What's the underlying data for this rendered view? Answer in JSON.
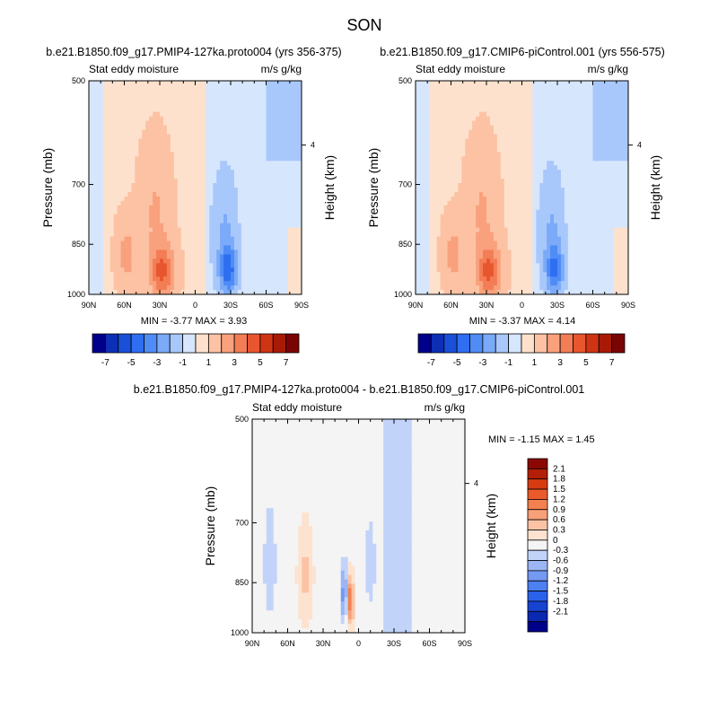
{
  "figure": {
    "title": "SON"
  },
  "colors": {
    "abs_palette": [
      "#00008b",
      "#0d2fb5",
      "#1a50d8",
      "#2e6ef0",
      "#4f8cf5",
      "#7aaaf8",
      "#a8c8fb",
      "#d6e6fd",
      "#fde1cd",
      "#fcc2a3",
      "#f9a17c",
      "#f37d55",
      "#e8562f",
      "#cf3414",
      "#a81a06",
      "#7a0403"
    ],
    "diff_palette": [
      "#00008b",
      "#0a28b0",
      "#1643d1",
      "#2b62ea",
      "#4d80f0",
      "#7499f3",
      "#9bb5f5",
      "#c2d3fa",
      "#f4f4f4",
      "#fde2d0",
      "#fbc3a4",
      "#f8a078",
      "#f3814f",
      "#ec5a2c",
      "#d73b12",
      "#b31e06",
      "#8a0703"
    ]
  },
  "chart_data": [
    {
      "type": "heatmap",
      "title": "b.e21.B1850.f09_g17.PMIP4-127ka.proto004 (yrs 356-375)",
      "left_label": "Stat eddy moisture",
      "right_label": "m/s g/kg",
      "ylabel": "Pressure (mb)",
      "ylabel_right": "Height (km)",
      "x_ticks": [
        "90N",
        "60N",
        "30N",
        "0",
        "30S",
        "60S",
        "90S"
      ],
      "x_values": [
        90,
        60,
        30,
        0,
        -30,
        -60,
        -90
      ],
      "y_ticks": [
        "500",
        "700",
        "850",
        "1000"
      ],
      "y_values": [
        500,
        700,
        850,
        1000
      ],
      "y_right_ticks": [
        "4"
      ],
      "ylim": [
        1000,
        500
      ],
      "xlim": [
        90,
        -90
      ],
      "stats": "MIN =  -3.77  MAX =   3.93",
      "min": -3.77,
      "max": 3.93,
      "colorbar": {
        "orientation": "horizontal",
        "labels": [
          "-7",
          "-5",
          "-3",
          "-1",
          "1",
          "3",
          "5",
          "7"
        ],
        "levels": [
          -7,
          -6,
          -5,
          -4,
          -3,
          -2,
          -1,
          0,
          1,
          2,
          3,
          4,
          5,
          6,
          7
        ]
      }
    },
    {
      "type": "heatmap",
      "title": "b.e21.B1850.f09_g17.CMIP6-piControl.001 (yrs 556-575)",
      "left_label": "Stat eddy moisture",
      "right_label": "m/s g/kg",
      "ylabel": "Pressure (mb)",
      "ylabel_right": "Height (km)",
      "x_ticks": [
        "90N",
        "60N",
        "30N",
        "0",
        "30S",
        "60S",
        "90S"
      ],
      "x_values": [
        90,
        60,
        30,
        0,
        -30,
        -60,
        -90
      ],
      "y_ticks": [
        "500",
        "700",
        "850",
        "1000"
      ],
      "y_values": [
        500,
        700,
        850,
        1000
      ],
      "y_right_ticks": [
        "4"
      ],
      "ylim": [
        1000,
        500
      ],
      "xlim": [
        90,
        -90
      ],
      "stats": "MIN =  -3.37  MAX =   4.14",
      "min": -3.37,
      "max": 4.14,
      "colorbar": {
        "orientation": "horizontal",
        "labels": [
          "-7",
          "-5",
          "-3",
          "-1",
          "1",
          "3",
          "5",
          "7"
        ],
        "levels": [
          -7,
          -6,
          -5,
          -4,
          -3,
          -2,
          -1,
          0,
          1,
          2,
          3,
          4,
          5,
          6,
          7
        ]
      }
    },
    {
      "type": "heatmap",
      "title": "b.e21.B1850.f09_g17.PMIP4-127ka.proto004 - b.e21.B1850.f09_g17.CMIP6-piControl.001",
      "left_label": "Stat eddy moisture",
      "right_label": "m/s g/kg",
      "ylabel": "Pressure (mb)",
      "ylabel_right": "Height (km)",
      "x_ticks": [
        "90N",
        "60N",
        "30N",
        "0",
        "30S",
        "60S",
        "90S"
      ],
      "x_values": [
        90,
        60,
        30,
        0,
        -30,
        -60,
        -90
      ],
      "y_ticks": [
        "500",
        "700",
        "850",
        "1000"
      ],
      "y_values": [
        500,
        700,
        850,
        1000
      ],
      "y_right_ticks": [
        "4"
      ],
      "ylim": [
        1000,
        500
      ],
      "xlim": [
        90,
        -90
      ],
      "stats": "MIN = -1.15  MAX =   1.45",
      "min": -1.15,
      "max": 1.45,
      "colorbar": {
        "orientation": "vertical",
        "labels": [
          "2.1",
          "1.8",
          "1.5",
          "1.2",
          "0.9",
          "0.6",
          "0.3",
          "0",
          "-0.3",
          "-0.6",
          "-0.9",
          "-1.2",
          "-1.5",
          "-1.8",
          "-2.1"
        ],
        "levels": [
          -2.1,
          -1.8,
          -1.5,
          -1.2,
          -0.9,
          -0.6,
          -0.3,
          0,
          0.3,
          0.6,
          0.9,
          1.2,
          1.5,
          1.8,
          2.1
        ]
      }
    }
  ]
}
